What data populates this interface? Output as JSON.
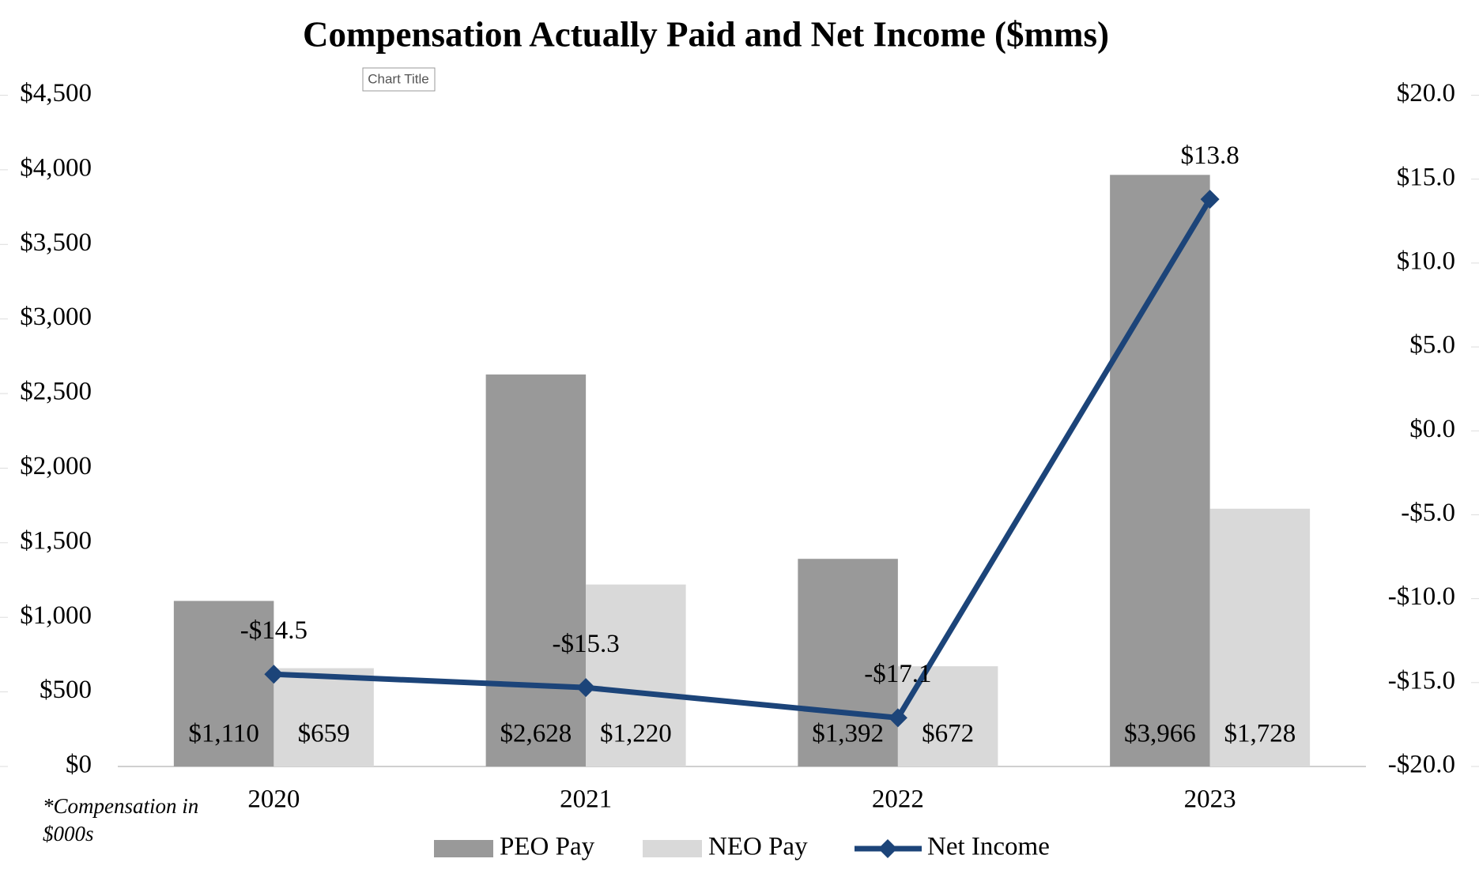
{
  "chart_data": {
    "type": "bar_line",
    "title": "Compensation Actually Paid and Net Income ($mms)",
    "overlay_label": "Chart Title",
    "note": [
      "*Compensation in",
      "$000s"
    ],
    "categories": [
      "2020",
      "2021",
      "2022",
      "2023"
    ],
    "series": [
      {
        "name": "PEO Pay",
        "type": "bar",
        "color": "#999999",
        "values": [
          1110,
          2628,
          1392,
          3966
        ],
        "value_labels": [
          "$1,110",
          "$2,628",
          "$1,392",
          "$3,966"
        ]
      },
      {
        "name": "NEO Pay",
        "type": "bar",
        "color": "#d9d9d9",
        "values": [
          659,
          1220,
          672,
          1728
        ],
        "value_labels": [
          "$659",
          "$1,220",
          "$672",
          "$1,728"
        ]
      },
      {
        "name": "Net Income",
        "type": "line",
        "axis": "y2",
        "color": "#1c4479",
        "values": [
          -14.5,
          -15.3,
          -17.1,
          13.8
        ],
        "value_labels": [
          "-$14.5",
          "-$15.3",
          "-$17.1",
          "$13.8"
        ]
      }
    ],
    "ylim": [
      0,
      4500
    ],
    "yticks": [
      {
        "value": 0,
        "label": "$0"
      },
      {
        "value": 500,
        "label": "$500"
      },
      {
        "value": 1000,
        "label": "$1,000"
      },
      {
        "value": 1500,
        "label": "$1,500"
      },
      {
        "value": 2000,
        "label": "$2,000"
      },
      {
        "value": 2500,
        "label": "$2,500"
      },
      {
        "value": 3000,
        "label": "$3,000"
      },
      {
        "value": 3500,
        "label": "$3,500"
      },
      {
        "value": 4000,
        "label": "$4,000"
      },
      {
        "value": 4500,
        "label": "$4,500"
      }
    ],
    "y2lim": [
      -20,
      20
    ],
    "y2ticks": [
      {
        "value": -20,
        "label": "-$20.0"
      },
      {
        "value": -15,
        "label": "-$15.0"
      },
      {
        "value": -10,
        "label": "-$10.0"
      },
      {
        "value": -5,
        "label": "-$5.0"
      },
      {
        "value": 0,
        "label": "$0.0"
      },
      {
        "value": 5,
        "label": "$5.0"
      },
      {
        "value": 10,
        "label": "$10.0"
      },
      {
        "value": 15,
        "label": "$15.0"
      },
      {
        "value": 20,
        "label": "$20.0"
      }
    ],
    "grid": false,
    "legend": "bottom"
  }
}
